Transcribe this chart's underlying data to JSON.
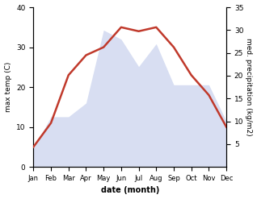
{
  "months": [
    "Jan",
    "Feb",
    "Mar",
    "Apr",
    "May",
    "Jun",
    "Jul",
    "Aug",
    "Sep",
    "Oct",
    "Nov",
    "Dec"
  ],
  "temperature": [
    5,
    11,
    23,
    28,
    30,
    35,
    34,
    35,
    30,
    23,
    18,
    10
  ],
  "precipitation": [
    4,
    11,
    11,
    14,
    30,
    28,
    22,
    27,
    18,
    18,
    18,
    10
  ],
  "temp_color": "#c0392b",
  "precip_fill_color": "#b8c4e8",
  "xlabel": "date (month)",
  "ylabel_left": "max temp (C)",
  "ylabel_right": "med. precipitation (kg/m2)",
  "ylim_left": [
    0,
    40
  ],
  "ylim_right": [
    0,
    35
  ],
  "yticks_left": [
    0,
    10,
    20,
    30,
    40
  ],
  "yticks_right": [
    5,
    10,
    15,
    20,
    25,
    30,
    35
  ],
  "line_width": 1.8,
  "fill_alpha": 0.55
}
